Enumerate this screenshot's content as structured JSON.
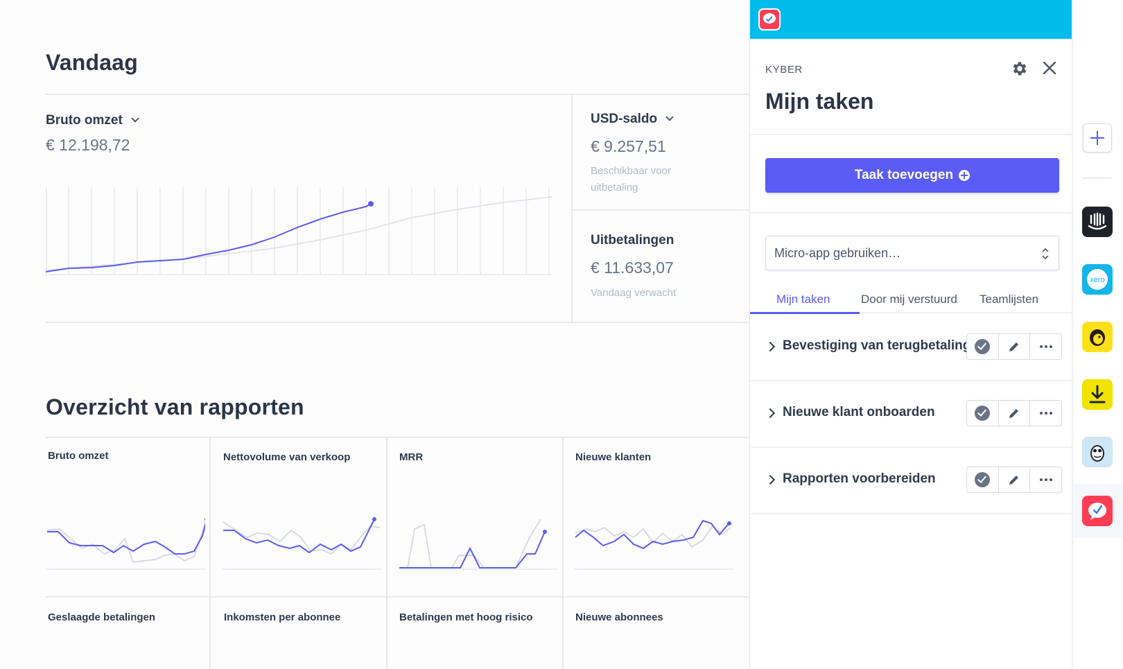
{
  "dashboard": {
    "today_heading": "Vandaag",
    "gross": {
      "title": "Bruto omzet",
      "value": "€ 12.198,72"
    },
    "usd": {
      "title": "USD-saldo",
      "value": "€ 9.257,51",
      "sub": "Beschikbaar voor uitbetaling"
    },
    "payouts": {
      "title": "Uitbetalingen",
      "value": "€ 11.633,07",
      "sub": "Vandaag verwacht"
    },
    "reports_heading": "Overzicht van rapporten",
    "tiles": [
      {
        "title": "Bruto omzet"
      },
      {
        "title": "Nettovolume van verkoop"
      },
      {
        "title": "MRR"
      },
      {
        "title": "Nieuwe klanten"
      },
      {
        "title": "Geslaagde betalingen"
      },
      {
        "title": "Inkomsten per abonnee"
      },
      {
        "title": "Betalingen met hoog risico"
      },
      {
        "title": "Nieuwe abonnees"
      }
    ],
    "colors": {
      "accent": "#5b5bf5",
      "comparison": "#d7dbe3"
    }
  },
  "panel": {
    "eyebrow": "KYBER",
    "title": "Mijn taken",
    "add_task_label": "Taak toevoegen",
    "micro_app_placeholder": "Micro-app gebruiken…",
    "tabs": [
      {
        "label": "Mijn taken",
        "active": true
      },
      {
        "label": "Door mij verstuurd",
        "active": false
      },
      {
        "label": "Teamlijsten",
        "active": false
      }
    ],
    "tasks": [
      {
        "label": "Bevestiging van terugbetaling"
      },
      {
        "label": "Nieuwe klant onboarden"
      },
      {
        "label": "Rapporten voorbereiden"
      }
    ],
    "header_color": "#00bbec"
  },
  "rail": {
    "apps": [
      {
        "name": "intercom-icon",
        "color": "#1f2329"
      },
      {
        "name": "xero-icon",
        "color": "#13b5ea",
        "text": "xero"
      },
      {
        "name": "mailchimp-icon",
        "color": "#ffe01b"
      },
      {
        "name": "download-app-icon",
        "color": "#f2e200"
      },
      {
        "name": "owl-app-icon",
        "color": "#cfe6f7"
      },
      {
        "name": "kyber-icon",
        "color": "#ff3e55"
      }
    ]
  }
}
